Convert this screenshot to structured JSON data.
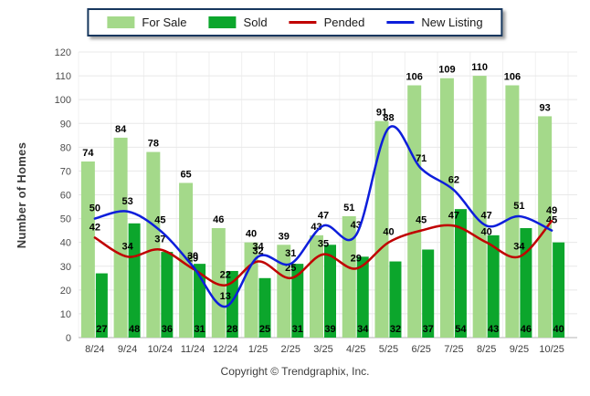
{
  "chart_data": {
    "type": "combo-bar-line",
    "title": "",
    "categories": [
      "8/24",
      "9/24",
      "10/24",
      "11/24",
      "12/24",
      "1/25",
      "2/25",
      "3/25",
      "4/25",
      "5/25",
      "6/25",
      "7/25",
      "8/25",
      "9/25",
      "10/25"
    ],
    "series": [
      {
        "name": "For Sale",
        "type": "bar",
        "color": "#a4d98a",
        "values": [
          74,
          84,
          78,
          65,
          46,
          40,
          39,
          43,
          51,
          91,
          106,
          109,
          110,
          106,
          93
        ]
      },
      {
        "name": "Sold",
        "type": "bar",
        "color": "#0ca62c",
        "values": [
          27,
          48,
          36,
          31,
          28,
          25,
          31,
          39,
          34,
          32,
          37,
          54,
          43,
          46,
          40
        ]
      },
      {
        "name": "Pended",
        "type": "line",
        "color": "#c00000",
        "values": [
          42,
          34,
          37,
          29,
          22,
          32,
          25,
          35,
          29,
          40,
          45,
          47,
          40,
          34,
          49
        ]
      },
      {
        "name": "New Listing",
        "type": "line",
        "color": "#0d1edb",
        "values": [
          50,
          53,
          45,
          30,
          13,
          34,
          31,
          47,
          43,
          88,
          71,
          62,
          47,
          51,
          45
        ]
      }
    ],
    "xlabel": "",
    "ylabel": "Number of Homes",
    "ylim": [
      0,
      120
    ],
    "yticks": [
      0,
      10,
      20,
      30,
      40,
      50,
      60,
      70,
      80,
      90,
      100,
      110,
      120
    ],
    "grid": true,
    "legend_position": "top"
  },
  "footer": {
    "copyright": "Copyright © Trendgraphix, Inc."
  }
}
